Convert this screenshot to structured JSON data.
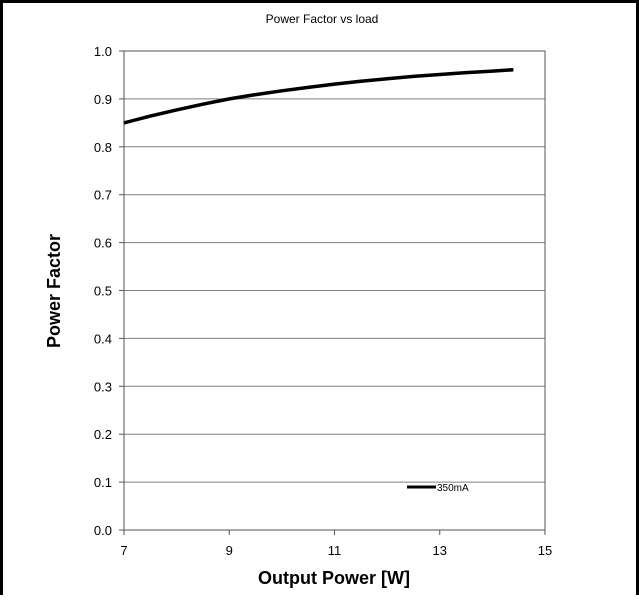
{
  "chart_data": {
    "type": "line",
    "title": "Power Factor vs load",
    "xlabel": "Output Power [W]",
    "ylabel": "Power Factor",
    "xlim": [
      7,
      15
    ],
    "ylim": [
      0.0,
      1.0
    ],
    "xticks": [
      "7",
      "9",
      "11",
      "13",
      "15"
    ],
    "yticks": [
      "0.0",
      "0.1",
      "0.2",
      "0.3",
      "0.4",
      "0.5",
      "0.6",
      "0.7",
      "0.8",
      "0.9",
      "1.0"
    ],
    "grid": {
      "horizontal": true,
      "vertical": false
    },
    "legend_position": "bottom-right",
    "series": [
      {
        "name": "350mA",
        "color": "#000000",
        "x": [
          7.0,
          7.5,
          8.0,
          8.5,
          9.0,
          9.5,
          10.0,
          10.5,
          11.0,
          11.5,
          12.0,
          12.5,
          13.0,
          13.5,
          14.0,
          14.4
        ],
        "y": [
          0.85,
          0.864,
          0.877,
          0.889,
          0.9,
          0.909,
          0.917,
          0.924,
          0.931,
          0.937,
          0.942,
          0.947,
          0.951,
          0.955,
          0.958,
          0.961
        ]
      }
    ]
  }
}
